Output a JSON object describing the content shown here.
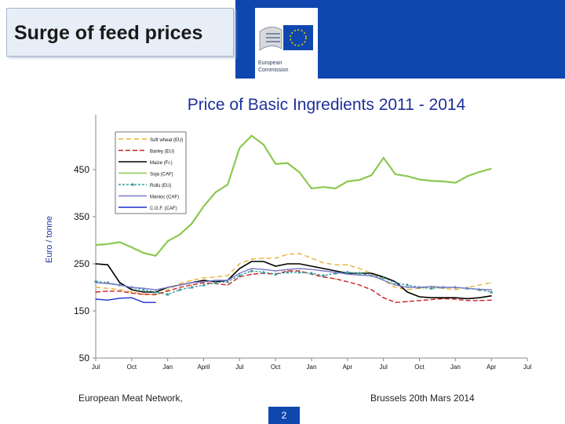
{
  "slide": {
    "title": "Surge of feed prices",
    "footer_left": "European Meat Network,",
    "footer_right": "Brussels 20th Mars 2014",
    "page_number": "2",
    "logo_text_line1": "European",
    "logo_text_line2": "Commission"
  },
  "colors": {
    "brand_blue": "#0f47af"
  },
  "chart_data": {
    "type": "line",
    "title": "Price of Basic Ingredients 2011 - 2014",
    "ylabel": "Euro / tonne",
    "xlabel": "",
    "ylim": [
      50,
      550
    ],
    "yticks": [
      50,
      150,
      250,
      350,
      450
    ],
    "ytick_labels": [
      "50",
      "150",
      "250",
      "350",
      "450"
    ],
    "xticks": [
      0,
      3,
      6,
      9,
      12,
      15,
      18,
      21,
      24,
      27,
      30,
      33,
      36
    ],
    "xtick_labels": [
      "Jul",
      "Oct",
      "Jan",
      "April",
      "Jul",
      "Oct",
      "Jan",
      "Apr",
      "Jul",
      "Oct",
      "Jan",
      "Apr",
      "Jul"
    ],
    "xlim": [
      0,
      36
    ],
    "legend_position": "top-left",
    "series": [
      {
        "name": "Soft wheat (EU)",
        "color": "#e8b030",
        "dash": "6,4",
        "x": [
          0,
          1,
          2,
          3,
          4,
          5,
          6,
          7,
          8,
          9,
          10,
          11,
          12,
          13,
          14,
          15,
          16,
          17,
          18,
          19,
          20,
          21,
          22,
          23,
          24,
          25,
          26,
          27,
          28,
          29,
          30,
          31,
          32,
          33
        ],
        "values": [
          200,
          198,
          195,
          190,
          186,
          184,
          195,
          208,
          215,
          220,
          222,
          225,
          250,
          260,
          262,
          262,
          270,
          272,
          262,
          252,
          248,
          248,
          240,
          230,
          215,
          200,
          195,
          198,
          200,
          198,
          195,
          200,
          205,
          210
        ]
      },
      {
        "name": "Barley (EU)",
        "color": "#cc2020",
        "dash": "6,3",
        "x": [
          0,
          1,
          2,
          3,
          4,
          5,
          6,
          7,
          8,
          9,
          10,
          11,
          12,
          13,
          14,
          15,
          16,
          17,
          18,
          19,
          20,
          21,
          22,
          23,
          24,
          25,
          26,
          27,
          28,
          29,
          30,
          31,
          32,
          33
        ],
        "values": [
          190,
          192,
          192,
          188,
          185,
          185,
          192,
          200,
          205,
          210,
          208,
          205,
          222,
          228,
          230,
          228,
          235,
          235,
          228,
          222,
          218,
          212,
          205,
          195,
          178,
          168,
          170,
          172,
          174,
          176,
          175,
          172,
          172,
          173
        ]
      },
      {
        "name": "Maize (Fr.)",
        "color": "#000000",
        "dash": "",
        "x": [
          0,
          1,
          2,
          3,
          4,
          5,
          6,
          7,
          8,
          9,
          10,
          11,
          12,
          13,
          14,
          15,
          16,
          17,
          18,
          19,
          20,
          21,
          22,
          23,
          24,
          25,
          26,
          27,
          28,
          29,
          30,
          31,
          32,
          33
        ],
        "values": [
          250,
          248,
          210,
          195,
          190,
          190,
          200,
          205,
          210,
          215,
          212,
          215,
          240,
          255,
          255,
          245,
          250,
          250,
          245,
          240,
          235,
          230,
          230,
          230,
          222,
          212,
          190,
          180,
          178,
          178,
          178,
          176,
          178,
          182
        ]
      },
      {
        "name": "Soja (CAF)",
        "color": "#8cc850",
        "dash": "",
        "x": [
          0,
          1,
          2,
          3,
          4,
          5,
          6,
          7,
          8,
          9,
          10,
          11,
          12,
          13,
          14,
          15,
          16,
          17,
          18,
          19,
          20,
          21,
          22,
          23,
          24,
          25,
          26,
          27,
          28,
          29,
          30,
          31,
          32,
          33
        ],
        "values": [
          290,
          292,
          296,
          285,
          273,
          267,
          298,
          312,
          335,
          372,
          402,
          418,
          496,
          522,
          503,
          462,
          464,
          444,
          410,
          413,
          410,
          425,
          428,
          438,
          475,
          440,
          436,
          429,
          426,
          425,
          422,
          436,
          445,
          452
        ]
      },
      {
        "name": "Rolls (EU)",
        "color": "#3a9898",
        "dash": "3,2",
        "marker": "triangle",
        "x": [
          0,
          1,
          2,
          3,
          4,
          5,
          6,
          7,
          8,
          9,
          10,
          11,
          12,
          13,
          14,
          15,
          16,
          17,
          18,
          19,
          20,
          21,
          22,
          23,
          24,
          25,
          26,
          27,
          28,
          29,
          30,
          31,
          32,
          33
        ],
        "values": [
          213,
          210,
          205,
          200,
          195,
          190,
          185,
          195,
          200,
          205,
          210,
          212,
          225,
          235,
          232,
          228,
          232,
          232,
          230,
          225,
          230,
          232,
          230,
          225,
          220,
          210,
          205,
          200,
          198,
          200,
          200,
          198,
          195,
          190
        ]
      },
      {
        "name": "Manioc (CAF)",
        "color": "#7a7acc",
        "dash": "",
        "x": [
          0,
          1,
          2,
          3,
          4,
          5,
          6,
          7,
          8,
          9,
          10,
          11,
          12,
          13,
          14,
          15,
          16,
          17,
          18,
          19,
          20,
          21,
          22,
          23,
          24,
          25,
          26,
          27,
          28,
          29,
          30,
          31,
          32,
          33
        ],
        "values": [
          210,
          208,
          205,
          200,
          198,
          195,
          200,
          205,
          210,
          212,
          215,
          215,
          230,
          240,
          238,
          235,
          238,
          240,
          238,
          235,
          232,
          228,
          226,
          225,
          215,
          205,
          200,
          200,
          202,
          200,
          200,
          198,
          196,
          195
        ]
      },
      {
        "name": "C.G.F. (CAF)",
        "color": "#1a2ec8",
        "dash": "",
        "x": [
          0,
          1,
          2,
          3,
          4,
          5
        ],
        "values": [
          175,
          173,
          177,
          178,
          168,
          168
        ]
      }
    ]
  }
}
